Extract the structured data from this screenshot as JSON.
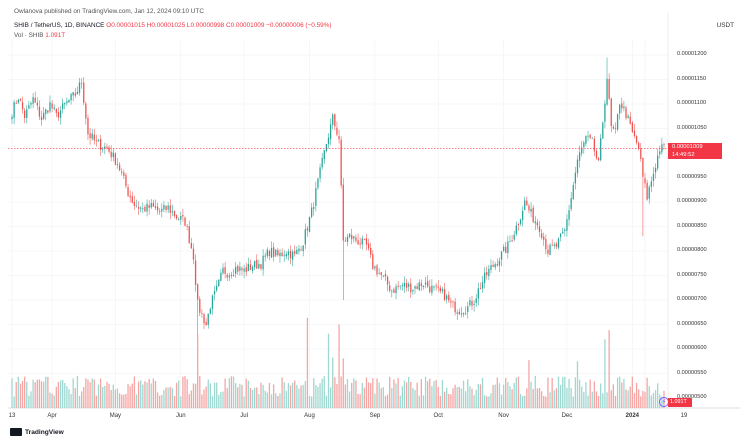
{
  "header": {
    "credit": "Owlanova published on TradingView.com, Jan 12, 2024 09:10 UTC",
    "symbol": "SHIB / TetherUS, 1D, BINANCE",
    "ohlc": "O0.00001015 H0.00001025 L0.00000998 C0.00001009 −0.00000006 (−0.59%)",
    "volume_label": "Vol · SHIB",
    "volume_value": "1.091T"
  },
  "unit": "USDT",
  "price_tag": {
    "price": "0.00001009",
    "countdown": "14:49:52"
  },
  "volume_tag": "1.091T",
  "logo_text": "TradingView",
  "colors": {
    "up": "#26a69a",
    "down": "#ef5350",
    "vol_up": "#9ed8d1",
    "vol_down": "#f5a5a3",
    "price_line": "#f23645",
    "grid": "#eef0f3"
  },
  "chart_data": {
    "type": "candlestick",
    "title": "",
    "y_ticks": [
      "0.00001200",
      "0.00001150",
      "0.00001100",
      "0.00001050",
      "0.00000950",
      "0.00000900",
      "0.00000850",
      "0.00000800",
      "0.00000750",
      "0.00000700",
      "0.00000650",
      "0.00000600",
      "0.00000550",
      "0.00000500"
    ],
    "y_tick_values": [
      1200,
      1150,
      1100,
      1050,
      950,
      900,
      850,
      800,
      750,
      700,
      650,
      600,
      550,
      500
    ],
    "x_ticks": [
      {
        "label": "13",
        "index": 0
      },
      {
        "label": "Apr",
        "index": 19
      },
      {
        "label": "May",
        "index": 49
      },
      {
        "label": "Jun",
        "index": 80
      },
      {
        "label": "Jul",
        "index": 110
      },
      {
        "label": "Aug",
        "index": 141
      },
      {
        "label": "Sep",
        "index": 172
      },
      {
        "label": "Oct",
        "index": 202
      },
      {
        "label": "Nov",
        "index": 233
      },
      {
        "label": "Dec",
        "index": 263
      },
      {
        "label": "2024",
        "index": 294,
        "bold": true
      },
      {
        "label": "19",
        "index": 300
      }
    ],
    "current_price": 1009,
    "price_scale_note": "prices in units of 1e-8 USDT",
    "anchors": [
      [
        0,
        1085
      ],
      [
        3,
        1115
      ],
      [
        6,
        1075
      ],
      [
        10,
        1110
      ],
      [
        14,
        1070
      ],
      [
        18,
        1100
      ],
      [
        21,
        1075
      ],
      [
        25,
        1098
      ],
      [
        30,
        1120
      ],
      [
        33,
        1145
      ],
      [
        36,
        1040
      ],
      [
        40,
        1020
      ],
      [
        45,
        1010
      ],
      [
        50,
        980
      ],
      [
        55,
        920
      ],
      [
        58,
        895
      ],
      [
        62,
        885
      ],
      [
        66,
        890
      ],
      [
        70,
        880
      ],
      [
        74,
        888
      ],
      [
        78,
        870
      ],
      [
        82,
        860
      ],
      [
        86,
        790
      ],
      [
        88,
        690
      ],
      [
        90,
        670
      ],
      [
        92,
        650
      ],
      [
        94,
        690
      ],
      [
        97,
        720
      ],
      [
        100,
        760
      ],
      [
        103,
        755
      ],
      [
        106,
        765
      ],
      [
        110,
        760
      ],
      [
        114,
        770
      ],
      [
        118,
        775
      ],
      [
        122,
        800
      ],
      [
        126,
        790
      ],
      [
        130,
        800
      ],
      [
        134,
        790
      ],
      [
        138,
        820
      ],
      [
        142,
        880
      ],
      [
        146,
        960
      ],
      [
        149,
        1020
      ],
      [
        152,
        1070
      ],
      [
        155,
        1030
      ],
      [
        157,
        820
      ],
      [
        160,
        830
      ],
      [
        164,
        820
      ],
      [
        168,
        810
      ],
      [
        171,
        770
      ],
      [
        175,
        750
      ],
      [
        180,
        720
      ],
      [
        185,
        730
      ],
      [
        190,
        725
      ],
      [
        195,
        735
      ],
      [
        200,
        720
      ],
      [
        205,
        710
      ],
      [
        208,
        690
      ],
      [
        212,
        680
      ],
      [
        216,
        685
      ],
      [
        219,
        700
      ],
      [
        222,
        730
      ],
      [
        226,
        760
      ],
      [
        230,
        780
      ],
      [
        235,
        810
      ],
      [
        240,
        860
      ],
      [
        243,
        900
      ],
      [
        246,
        875
      ],
      [
        250,
        850
      ],
      [
        254,
        800
      ],
      [
        258,
        810
      ],
      [
        262,
        840
      ],
      [
        265,
        910
      ],
      [
        268,
        985
      ],
      [
        272,
        1030
      ],
      [
        275,
        1020
      ],
      [
        278,
        975
      ],
      [
        282,
        1155
      ],
      [
        284,
        1050
      ],
      [
        286,
        1040
      ],
      [
        288,
        1105
      ],
      [
        291,
        1080
      ],
      [
        294,
        1040
      ],
      [
        297,
        1010
      ],
      [
        299,
        950
      ],
      [
        301,
        910
      ],
      [
        304,
        960
      ],
      [
        307,
        1009
      ]
    ],
    "volume_range": [
      0,
      100
    ]
  }
}
